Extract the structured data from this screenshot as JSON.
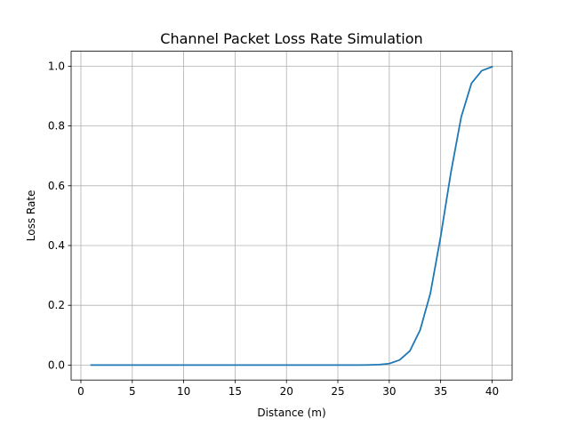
{
  "chart_data": {
    "type": "line",
    "title": "Channel Packet Loss Rate Simulation",
    "xlabel": "Distance (m)",
    "ylabel": "Loss Rate",
    "xlim": [
      -0.95,
      41.95
    ],
    "ylim": [
      -0.05,
      1.05
    ],
    "xticks": [
      0,
      5,
      10,
      15,
      20,
      25,
      30,
      35,
      40
    ],
    "yticks": [
      0.0,
      0.2,
      0.4,
      0.6,
      0.8,
      1.0
    ],
    "ytick_labels": [
      "0.0",
      "0.2",
      "0.4",
      "0.6",
      "0.8",
      "1.0"
    ],
    "grid": true,
    "series": [
      {
        "color": "#1f77b4",
        "x": [
          1,
          2,
          3,
          4,
          5,
          6,
          7,
          8,
          9,
          10,
          11,
          12,
          13,
          14,
          15,
          16,
          17,
          18,
          19,
          20,
          21,
          22,
          23,
          24,
          25,
          26,
          27,
          28,
          29,
          30,
          31,
          32,
          33,
          34,
          35,
          36,
          37,
          38,
          39,
          40
        ],
        "y": [
          0,
          0,
          0,
          0,
          0,
          0,
          0,
          0,
          0,
          0,
          0,
          0,
          0,
          0,
          0,
          0,
          0,
          0,
          0,
          0,
          0,
          0,
          0,
          0,
          0,
          0,
          0,
          0.0004,
          0.0015,
          0.005,
          0.017,
          0.047,
          0.117,
          0.24,
          0.43,
          0.645,
          0.83,
          0.943,
          0.985,
          0.998
        ]
      }
    ]
  }
}
